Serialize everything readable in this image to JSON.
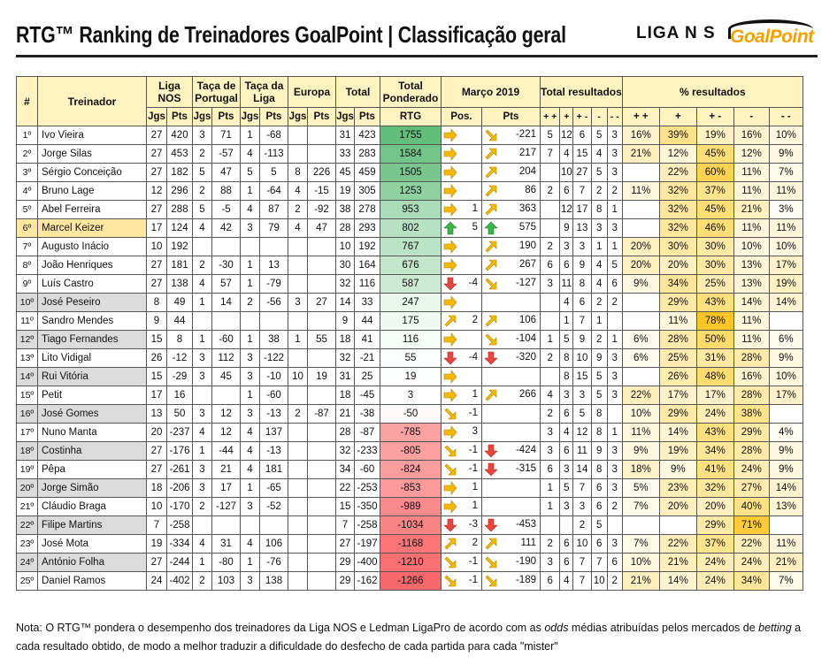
{
  "title": "RTG™ Ranking de Treinadores GoalPoint | Classificação geral",
  "logos": {
    "liga": "LIGA N S",
    "goalpoint": "GoalPoint"
  },
  "headers": {
    "rank": "#",
    "coach": "Treinador",
    "liga": "Liga NOS",
    "taca_pt": "Taça de Portugal",
    "taca_liga": "Taça da Liga",
    "europa": "Europa",
    "total": "Total",
    "total_ponderado": "Total Ponderado",
    "marco": "Março 2019",
    "total_resultados": "Total resultados",
    "pct_resultados": "% resultados",
    "jgs": "Jgs",
    "pts": "Pts",
    "rtg": "RTG",
    "pos": "Pos.",
    "res_cols": [
      "+ +",
      "+",
      "+ -",
      "-",
      "- -"
    ]
  },
  "rows": [
    {
      "rank": "1º",
      "name": "Ivo Vieira",
      "lj": "27",
      "lp": "420",
      "tj": "3",
      "tp": "71",
      "cj": "1",
      "cp": "-68",
      "ej": "",
      "ep": "",
      "totj": "31",
      "totp": "423",
      "rtg": "1755",
      "pos_dir": "right",
      "pos": "",
      "pts_dir": "down-right",
      "pts": "-221",
      "r": [
        "5",
        "12",
        "6",
        "5",
        "3"
      ],
      "p": [
        "16%",
        "39%",
        "19%",
        "16%",
        "10%"
      ]
    },
    {
      "rank": "2º",
      "name": "Jorge Silas",
      "lj": "27",
      "lp": "453",
      "tj": "2",
      "tp": "-57",
      "cj": "4",
      "cp": "-113",
      "ej": "",
      "ep": "",
      "totj": "33",
      "totp": "283",
      "rtg": "1584",
      "pos_dir": "right",
      "pos": "",
      "pts_dir": "up-right",
      "pts": "217",
      "r": [
        "7",
        "4",
        "15",
        "4",
        "3"
      ],
      "p": [
        "21%",
        "12%",
        "45%",
        "12%",
        "9%"
      ]
    },
    {
      "rank": "3º",
      "name": "Sérgio Conceição",
      "lj": "27",
      "lp": "182",
      "tj": "5",
      "tp": "47",
      "cj": "5",
      "cp": "5",
      "ej": "8",
      "ep": "226",
      "totj": "45",
      "totp": "459",
      "rtg": "1505",
      "pos_dir": "right",
      "pos": "",
      "pts_dir": "up-right",
      "pts": "204",
      "r": [
        "",
        "10",
        "27",
        "5",
        "3"
      ],
      "p": [
        "",
        "22%",
        "60%",
        "11%",
        "7%"
      ]
    },
    {
      "rank": "4º",
      "name": "Bruno Lage",
      "lj": "12",
      "lp": "296",
      "tj": "2",
      "tp": "88",
      "cj": "1",
      "cp": "-64",
      "ej": "4",
      "ep": "-15",
      "totj": "19",
      "totp": "305",
      "rtg": "1253",
      "pos_dir": "right",
      "pos": "",
      "pts_dir": "up-right",
      "pts": "86",
      "r": [
        "2",
        "6",
        "7",
        "2",
        "2"
      ],
      "p": [
        "11%",
        "32%",
        "37%",
        "11%",
        "11%"
      ]
    },
    {
      "rank": "5º",
      "name": "Abel Ferreira",
      "lj": "27",
      "lp": "288",
      "tj": "5",
      "tp": "-5",
      "cj": "4",
      "cp": "87",
      "ej": "2",
      "ep": "-92",
      "totj": "38",
      "totp": "278",
      "rtg": "953",
      "pos_dir": "right",
      "pos": "1",
      "pts_dir": "up-right",
      "pts": "363",
      "r": [
        "",
        "12",
        "17",
        "8",
        "1"
      ],
      "p": [
        "",
        "32%",
        "45%",
        "21%",
        "3%"
      ]
    },
    {
      "rank": "6º",
      "name": "Marcel Keizer",
      "lj": "17",
      "lp": "124",
      "tj": "4",
      "tp": "42",
      "cj": "3",
      "cp": "79",
      "ej": "4",
      "ep": "47",
      "totj": "28",
      "totp": "293",
      "rtg": "802",
      "pos_dir": "up",
      "pos": "5",
      "pts_dir": "up",
      "pts": "575",
      "r": [
        "",
        "9",
        "13",
        "3",
        "3"
      ],
      "p": [
        "",
        "32%",
        "46%",
        "11%",
        "11%"
      ]
    },
    {
      "rank": "7º",
      "name": "Augusto Inácio",
      "lj": "10",
      "lp": "192",
      "tj": "",
      "tp": "",
      "cj": "",
      "cp": "",
      "ej": "",
      "ep": "",
      "totj": "10",
      "totp": "192",
      "rtg": "767",
      "pos_dir": "right",
      "pos": "",
      "pts_dir": "up-right",
      "pts": "190",
      "r": [
        "2",
        "3",
        "3",
        "1",
        "1"
      ],
      "p": [
        "20%",
        "30%",
        "30%",
        "10%",
        "10%"
      ]
    },
    {
      "rank": "8º",
      "name": "João Henriques",
      "lj": "27",
      "lp": "181",
      "tj": "2",
      "tp": "-30",
      "cj": "1",
      "cp": "13",
      "ej": "",
      "ep": "",
      "totj": "30",
      "totp": "164",
      "rtg": "676",
      "pos_dir": "right",
      "pos": "",
      "pts_dir": "up-right",
      "pts": "267",
      "r": [
        "6",
        "6",
        "9",
        "4",
        "5"
      ],
      "p": [
        "20%",
        "20%",
        "30%",
        "13%",
        "17%"
      ]
    },
    {
      "rank": "9º",
      "name": "Luís Castro",
      "lj": "27",
      "lp": "138",
      "tj": "4",
      "tp": "57",
      "cj": "1",
      "cp": "-79",
      "ej": "",
      "ep": "",
      "totj": "32",
      "totp": "116",
      "rtg": "587",
      "pos_dir": "down",
      "pos": "-4",
      "pts_dir": "down-right",
      "pts": "-127",
      "r": [
        "3",
        "11",
        "8",
        "4",
        "6"
      ],
      "p": [
        "9%",
        "34%",
        "25%",
        "13%",
        "19%"
      ]
    },
    {
      "rank": "10º",
      "name": "José Peseiro",
      "lj": "8",
      "lp": "49",
      "tj": "1",
      "tp": "14",
      "cj": "2",
      "cp": "-56",
      "ej": "3",
      "ep": "27",
      "totj": "14",
      "totp": "33",
      "rtg": "247",
      "pos_dir": "right",
      "pos": "",
      "pts_dir": "",
      "pts": "",
      "r": [
        "",
        "4",
        "6",
        "2",
        "2"
      ],
      "p": [
        "",
        "29%",
        "43%",
        "14%",
        "14%"
      ]
    },
    {
      "rank": "11º",
      "name": "Sandro Mendes",
      "lj": "9",
      "lp": "44",
      "tj": "",
      "tp": "",
      "cj": "",
      "cp": "",
      "ej": "",
      "ep": "",
      "totj": "9",
      "totp": "44",
      "rtg": "175",
      "pos_dir": "up-right",
      "pos": "2",
      "pts_dir": "up-right",
      "pts": "106",
      "r": [
        "",
        "1",
        "7",
        "1",
        ""
      ],
      "p": [
        "",
        "11%",
        "78%",
        "11%",
        ""
      ]
    },
    {
      "rank": "12º",
      "name": "Tiago Fernandes",
      "lj": "15",
      "lp": "8",
      "tj": "1",
      "tp": "-60",
      "cj": "1",
      "cp": "38",
      "ej": "1",
      "ep": "55",
      "totj": "18",
      "totp": "41",
      "rtg": "116",
      "pos_dir": "right",
      "pos": "",
      "pts_dir": "down-right",
      "pts": "-104",
      "r": [
        "1",
        "5",
        "9",
        "2",
        "1"
      ],
      "p": [
        "6%",
        "28%",
        "50%",
        "11%",
        "6%"
      ]
    },
    {
      "rank": "13º",
      "name": "Lito Vidigal",
      "lj": "26",
      "lp": "-12",
      "tj": "3",
      "tp": "112",
      "cj": "3",
      "cp": "-122",
      "ej": "",
      "ep": "",
      "totj": "32",
      "totp": "-21",
      "rtg": "55",
      "pos_dir": "down",
      "pos": "-4",
      "pts_dir": "down",
      "pts": "-320",
      "r": [
        "2",
        "8",
        "10",
        "9",
        "3"
      ],
      "p": [
        "6%",
        "25%",
        "31%",
        "28%",
        "9%"
      ]
    },
    {
      "rank": "14º",
      "name": "Rui Vitória",
      "lj": "15",
      "lp": "-29",
      "tj": "3",
      "tp": "45",
      "cj": "3",
      "cp": "-10",
      "ej": "10",
      "ep": "19",
      "totj": "31",
      "totp": "25",
      "rtg": "19",
      "pos_dir": "right",
      "pos": "",
      "pts_dir": "",
      "pts": "",
      "r": [
        "",
        "8",
        "15",
        "5",
        "3"
      ],
      "p": [
        "",
        "26%",
        "48%",
        "16%",
        "10%"
      ]
    },
    {
      "rank": "15º",
      "name": "Petit",
      "lj": "17",
      "lp": "16",
      "tj": "",
      "tp": "",
      "cj": "1",
      "cp": "-60",
      "ej": "",
      "ep": "",
      "totj": "18",
      "totp": "-45",
      "rtg": "3",
      "pos_dir": "right",
      "pos": "1",
      "pts_dir": "up-right",
      "pts": "266",
      "r": [
        "4",
        "3",
        "3",
        "5",
        "3"
      ],
      "p": [
        "22%",
        "17%",
        "17%",
        "28%",
        "17%"
      ]
    },
    {
      "rank": "16º",
      "name": "José Gomes",
      "lj": "13",
      "lp": "50",
      "tj": "3",
      "tp": "12",
      "cj": "3",
      "cp": "-13",
      "ej": "2",
      "ep": "-87",
      "totj": "21",
      "totp": "-38",
      "rtg": "-50",
      "pos_dir": "down-right",
      "pos": "-1",
      "pts_dir": "",
      "pts": "",
      "r": [
        "2",
        "6",
        "5",
        "8",
        ""
      ],
      "p": [
        "10%",
        "29%",
        "24%",
        "38%",
        ""
      ]
    },
    {
      "rank": "17º",
      "name": "Nuno Manta",
      "lj": "20",
      "lp": "-237",
      "tj": "4",
      "tp": "12",
      "cj": "4",
      "cp": "137",
      "ej": "",
      "ep": "",
      "totj": "28",
      "totp": "-87",
      "rtg": "-785",
      "pos_dir": "right",
      "pos": "3",
      "pts_dir": "",
      "pts": "",
      "r": [
        "3",
        "4",
        "12",
        "8",
        "1"
      ],
      "p": [
        "11%",
        "14%",
        "43%",
        "29%",
        "4%"
      ]
    },
    {
      "rank": "18º",
      "name": "Costinha",
      "lj": "27",
      "lp": "-176",
      "tj": "1",
      "tp": "-44",
      "cj": "4",
      "cp": "-13",
      "ej": "",
      "ep": "",
      "totj": "32",
      "totp": "-233",
      "rtg": "-805",
      "pos_dir": "down-right",
      "pos": "-1",
      "pts_dir": "down",
      "pts": "-424",
      "r": [
        "3",
        "6",
        "11",
        "9",
        "3"
      ],
      "p": [
        "9%",
        "19%",
        "34%",
        "28%",
        "9%"
      ]
    },
    {
      "rank": "19º",
      "name": "Pêpa",
      "lj": "27",
      "lp": "-261",
      "tj": "3",
      "tp": "21",
      "cj": "4",
      "cp": "181",
      "ej": "",
      "ep": "",
      "totj": "34",
      "totp": "-60",
      "rtg": "-824",
      "pos_dir": "down-right",
      "pos": "-1",
      "pts_dir": "down",
      "pts": "-315",
      "r": [
        "6",
        "3",
        "14",
        "8",
        "3"
      ],
      "p": [
        "18%",
        "9%",
        "41%",
        "24%",
        "9%"
      ]
    },
    {
      "rank": "20º",
      "name": "Jorge Simão",
      "lj": "18",
      "lp": "-206",
      "tj": "3",
      "tp": "17",
      "cj": "1",
      "cp": "-65",
      "ej": "",
      "ep": "",
      "totj": "22",
      "totp": "-253",
      "rtg": "-853",
      "pos_dir": "right",
      "pos": "1",
      "pts_dir": "",
      "pts": "",
      "r": [
        "1",
        "5",
        "7",
        "6",
        "3"
      ],
      "p": [
        "5%",
        "23%",
        "32%",
        "27%",
        "14%"
      ]
    },
    {
      "rank": "21º",
      "name": "Cláudio Braga",
      "lj": "10",
      "lp": "-170",
      "tj": "2",
      "tp": "-127",
      "cj": "3",
      "cp": "-52",
      "ej": "",
      "ep": "",
      "totj": "15",
      "totp": "-350",
      "rtg": "-989",
      "pos_dir": "right",
      "pos": "1",
      "pts_dir": "",
      "pts": "",
      "r": [
        "1",
        "3",
        "3",
        "6",
        "2"
      ],
      "p": [
        "7%",
        "20%",
        "20%",
        "40%",
        "13%"
      ]
    },
    {
      "rank": "22º",
      "name": "Filipe Martins",
      "lj": "7",
      "lp": "-258",
      "tj": "",
      "tp": "",
      "cj": "",
      "cp": "",
      "ej": "",
      "ep": "",
      "totj": "7",
      "totp": "-258",
      "rtg": "-1034",
      "pos_dir": "down",
      "pos": "-3",
      "pts_dir": "down",
      "pts": "-453",
      "r": [
        "",
        "",
        "2",
        "5",
        ""
      ],
      "p": [
        "",
        "",
        "29%",
        "71%",
        ""
      ]
    },
    {
      "rank": "23º",
      "name": "José Mota",
      "lj": "19",
      "lp": "-334",
      "tj": "4",
      "tp": "31",
      "cj": "4",
      "cp": "106",
      "ej": "",
      "ep": "",
      "totj": "27",
      "totp": "-197",
      "rtg": "-1168",
      "pos_dir": "up-right",
      "pos": "2",
      "pts_dir": "up-right",
      "pts": "111",
      "r": [
        "2",
        "6",
        "10",
        "6",
        "3"
      ],
      "p": [
        "7%",
        "22%",
        "37%",
        "22%",
        "11%"
      ]
    },
    {
      "rank": "24º",
      "name": "António Folha",
      "lj": "27",
      "lp": "-244",
      "tj": "1",
      "tp": "-80",
      "cj": "1",
      "cp": "-76",
      "ej": "",
      "ep": "",
      "totj": "29",
      "totp": "-400",
      "rtg": "-1210",
      "pos_dir": "down-right",
      "pos": "-1",
      "pts_dir": "down-right",
      "pts": "-190",
      "r": [
        "3",
        "6",
        "7",
        "7",
        "6"
      ],
      "p": [
        "10%",
        "21%",
        "24%",
        "24%",
        "21%"
      ]
    },
    {
      "rank": "25º",
      "name": "Daniel Ramos",
      "lj": "24",
      "lp": "-402",
      "tj": "2",
      "tp": "103",
      "cj": "3",
      "cp": "138",
      "ej": "",
      "ep": "",
      "totj": "29",
      "totp": "-162",
      "rtg": "-1266",
      "pos_dir": "down-right",
      "pos": "-1",
      "pts_dir": "down-right",
      "pts": "-189",
      "r": [
        "6",
        "4",
        "7",
        "10",
        "2"
      ],
      "p": [
        "21%",
        "14%",
        "24%",
        "34%",
        "7%"
      ]
    }
  ],
  "note": {
    "p1": "Nota: O RTG™ pondera o desempenho dos treinadores da Liga NOS e Ledman LigaPro de acordo com as ",
    "odds": "odds",
    "p2": " médias atribuídas pelos mercados de ",
    "betting": "betting",
    "p3": " a cada resultado obtido, de modo a melhor traduzir a dificuldade do desfecho de cada partida para cada \"mister\""
  },
  "colors": {
    "header_bg": "#fff3c2",
    "highlight_row": "#ffe7a1",
    "alt_row": "#dcdcdc",
    "positive": "#63be7b",
    "negative": "#f8696b",
    "arrow_orange": "#f5b800",
    "arrow_green": "#3cb44b",
    "arrow_red": "#e8473f"
  }
}
